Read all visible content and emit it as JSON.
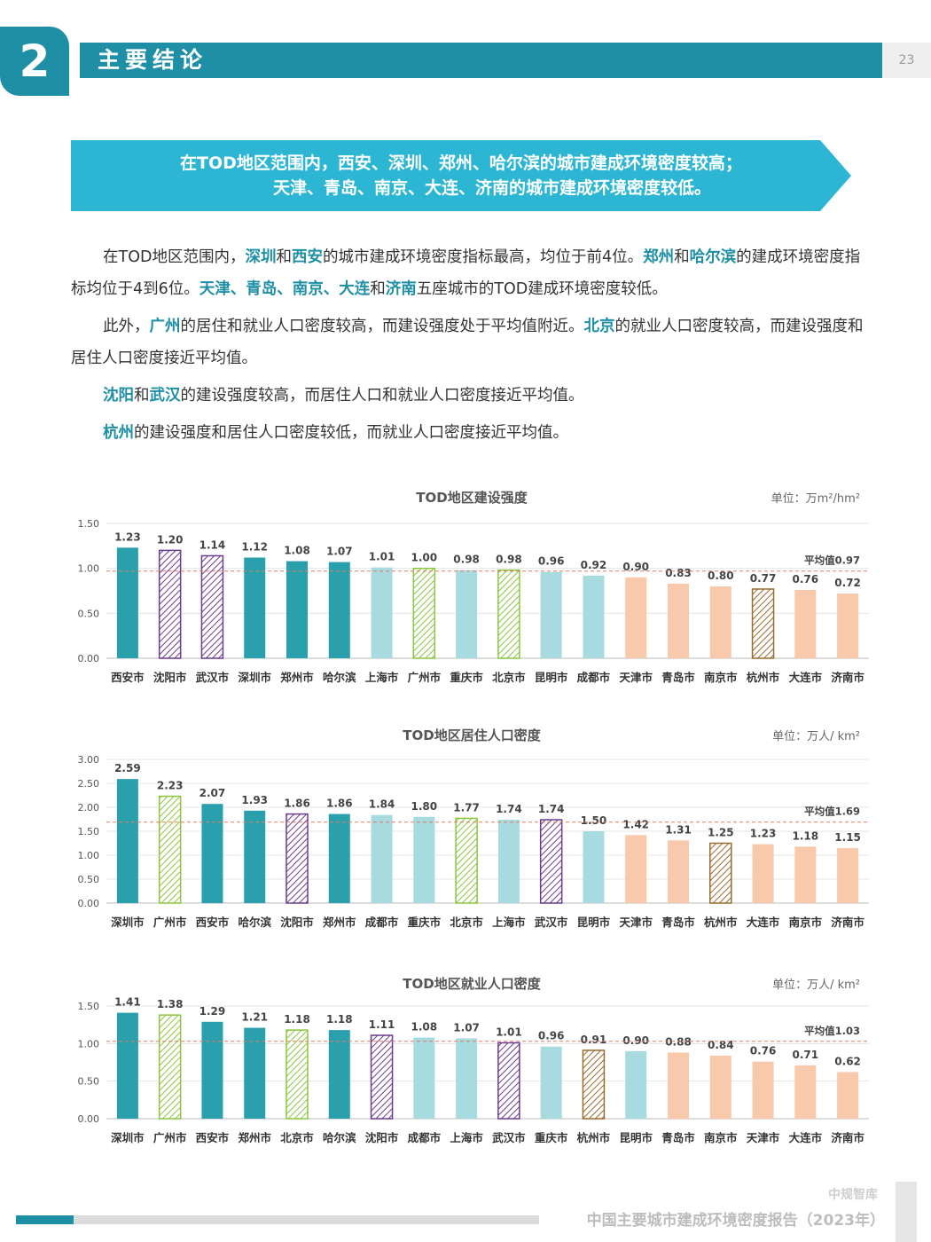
{
  "header": {
    "section_number": "2",
    "section_title": "主要结论",
    "page_number": "23"
  },
  "banner": {
    "line1": "在TOD地区范围内，西安、深圳、郑州、哈尔滨的城市建成环境密度较高；",
    "line2": "天津、青岛、南京、大连、济南的城市建成环境密度较低。"
  },
  "paragraphs": [
    [
      {
        "t": "在TOD地区范围内，",
        "h": false
      },
      {
        "t": "深圳",
        "h": true
      },
      {
        "t": "和",
        "h": false
      },
      {
        "t": "西安",
        "h": true
      },
      {
        "t": "的城市建成环境密度指标最高，均位于前4位。",
        "h": false
      },
      {
        "t": "郑州",
        "h": true
      },
      {
        "t": "和",
        "h": false
      },
      {
        "t": "哈尔滨",
        "h": true
      },
      {
        "t": "的建成环境密度指标均位于4到6位。",
        "h": false
      },
      {
        "t": "天津、青岛、南京、大连",
        "h": true
      },
      {
        "t": "和",
        "h": false
      },
      {
        "t": "济南",
        "h": true
      },
      {
        "t": "五座城市的TOD建成环境密度较低。",
        "h": false
      }
    ],
    [
      {
        "t": "此外，",
        "h": false
      },
      {
        "t": "广州",
        "h": true
      },
      {
        "t": "的居住和就业人口密度较高，而建设强度处于平均值附近。",
        "h": false
      },
      {
        "t": "北京",
        "h": true
      },
      {
        "t": "的就业人口密度较高，而建设强度和居住人口密度接近平均值。",
        "h": false
      }
    ],
    [
      {
        "t": "沈阳",
        "h": true
      },
      {
        "t": "和",
        "h": false
      },
      {
        "t": "武汉",
        "h": true
      },
      {
        "t": "的建设强度较高，而居住人口和就业人口密度接近平均值。",
        "h": false
      }
    ],
    [
      {
        "t": "杭州",
        "h": true
      },
      {
        "t": "的建设强度和居住人口密度较低，而就业人口密度接近平均值。",
        "h": false
      }
    ]
  ],
  "colors": {
    "teal": "#2aa0ac",
    "light_teal": "#a8dbe0",
    "peach": "#f8c9ab",
    "hatch_purple": "#6a3b8f",
    "hatch_green": "#8cc63f",
    "hatch_brown": "#9a6a2e",
    "avg_line": "#e07a5f",
    "primary": "#1f8fa6"
  },
  "chart_data": [
    {
      "type": "bar",
      "title": "TOD地区建设强度",
      "unit": "单位：万m²/hm²",
      "categories": [
        "西安市",
        "沈阳市",
        "武汉市",
        "深圳市",
        "郑州市",
        "哈尔滨",
        "上海市",
        "广州市",
        "重庆市",
        "北京市",
        "昆明市",
        "成都市",
        "天津市",
        "青岛市",
        "南京市",
        "杭州市",
        "大连市",
        "济南市"
      ],
      "values": [
        1.23,
        1.2,
        1.14,
        1.12,
        1.08,
        1.07,
        1.01,
        1.0,
        0.98,
        0.98,
        0.96,
        0.92,
        0.9,
        0.83,
        0.8,
        0.77,
        0.76,
        0.72
      ],
      "labels": [
        "1.23",
        "1.20",
        "1.14",
        "1.12",
        "1.08",
        "1.07",
        "1.01",
        "1.00",
        "0.98",
        "0.98",
        "0.96",
        "0.92",
        "0.90",
        "0.83",
        "0.80",
        "0.77",
        "0.76",
        "0.72"
      ],
      "styles": [
        "teal",
        "hatch_purple",
        "hatch_purple",
        "teal",
        "teal",
        "teal",
        "light_teal",
        "hatch_green",
        "light_teal",
        "hatch_green",
        "light_teal",
        "light_teal",
        "peach",
        "peach",
        "peach",
        "hatch_brown",
        "peach",
        "peach"
      ],
      "ylim": [
        0,
        1.5
      ],
      "yticks": [
        "0.00",
        "0.50",
        "1.00",
        "1.50"
      ],
      "ytick_values": [
        0,
        0.5,
        1.0,
        1.5
      ],
      "average": 0.97,
      "average_label": "平均值0.97"
    },
    {
      "type": "bar",
      "title": "TOD地区居住人口密度",
      "unit": "单位：万人/ km²",
      "categories": [
        "深圳市",
        "广州市",
        "西安市",
        "哈尔滨",
        "沈阳市",
        "郑州市",
        "成都市",
        "重庆市",
        "北京市",
        "上海市",
        "武汉市",
        "昆明市",
        "天津市",
        "青岛市",
        "杭州市",
        "大连市",
        "南京市",
        "济南市"
      ],
      "values": [
        2.59,
        2.23,
        2.07,
        1.93,
        1.86,
        1.86,
        1.84,
        1.8,
        1.77,
        1.74,
        1.74,
        1.5,
        1.42,
        1.31,
        1.25,
        1.23,
        1.18,
        1.15
      ],
      "labels": [
        "2.59",
        "2.23",
        "2.07",
        "1.93",
        "1.86",
        "1.86",
        "1.84",
        "1.80",
        "1.77",
        "1.74",
        "1.74",
        "1.50",
        "1.42",
        "1.31",
        "1.25",
        "1.23",
        "1.18",
        "1.15"
      ],
      "styles": [
        "teal",
        "hatch_green",
        "teal",
        "teal",
        "hatch_purple",
        "teal",
        "light_teal",
        "light_teal",
        "hatch_green",
        "light_teal",
        "hatch_purple",
        "light_teal",
        "peach",
        "peach",
        "hatch_brown",
        "peach",
        "peach",
        "peach"
      ],
      "ylim": [
        0,
        3.0
      ],
      "yticks": [
        "0.00",
        "0.50",
        "1.00",
        "1.50",
        "2.00",
        "2.50",
        "3.00"
      ],
      "ytick_values": [
        0,
        0.5,
        1.0,
        1.5,
        2.0,
        2.5,
        3.0
      ],
      "average": 1.69,
      "average_label": "平均值1.69"
    },
    {
      "type": "bar",
      "title": "TOD地区就业人口密度",
      "unit": "单位：万人/ km²",
      "categories": [
        "深圳市",
        "广州市",
        "西安市",
        "郑州市",
        "北京市",
        "哈尔滨",
        "沈阳市",
        "成都市",
        "上海市",
        "武汉市",
        "重庆市",
        "杭州市",
        "昆明市",
        "青岛市",
        "南京市",
        "天津市",
        "大连市",
        "济南市"
      ],
      "values": [
        1.41,
        1.38,
        1.29,
        1.21,
        1.18,
        1.18,
        1.11,
        1.08,
        1.07,
        1.01,
        0.96,
        0.91,
        0.9,
        0.88,
        0.84,
        0.76,
        0.71,
        0.62
      ],
      "labels": [
        "1.41",
        "1.38",
        "1.29",
        "1.21",
        "1.18",
        "1.18",
        "1.11",
        "1.08",
        "1.07",
        "1.01",
        "0.96",
        "0.91",
        "0.90",
        "0.88",
        "0.84",
        "0.76",
        "0.71",
        "0.62"
      ],
      "styles": [
        "teal",
        "hatch_green",
        "teal",
        "teal",
        "hatch_green",
        "teal",
        "hatch_purple",
        "light_teal",
        "light_teal",
        "hatch_purple",
        "light_teal",
        "hatch_brown",
        "light_teal",
        "peach",
        "peach",
        "peach",
        "peach",
        "peach"
      ],
      "ylim": [
        0,
        1.5
      ],
      "yticks": [
        "0.00",
        "0.50",
        "1.00",
        "1.50"
      ],
      "ytick_values": [
        0,
        0.5,
        1.0,
        1.5
      ],
      "average": 1.03,
      "average_label": "平均值1.03"
    }
  ],
  "footer": {
    "brand": "中规智库",
    "report_title": "中国主要城市建成环境密度报告（2023年）"
  }
}
